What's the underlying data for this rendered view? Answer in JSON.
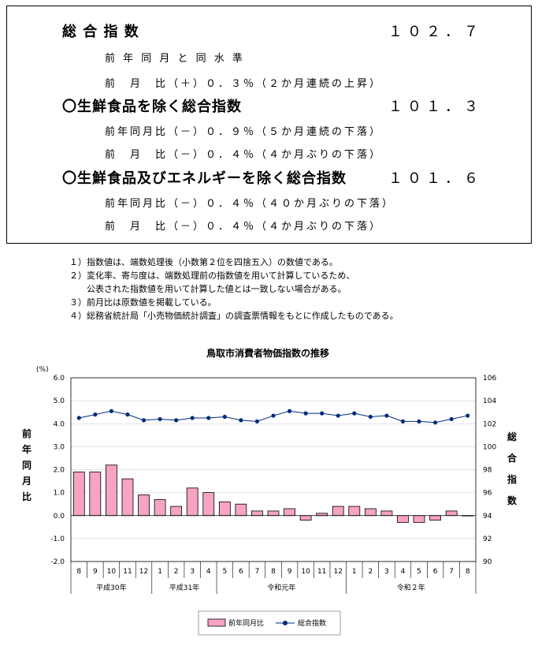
{
  "summary": {
    "overall": {
      "label": "総 合 指 数",
      "value": "１０２．７",
      "line1": "前 年 同 月 と 同 水 準",
      "line2": "前　月　比（＋）０．３％（２か月連続の上昇）"
    },
    "ex_fresh": {
      "label": "〇生鮮食品を除く総合指数",
      "value": "１０１．３",
      "line1": "前年同月比（－）０．９％（５か月連続の下落）",
      "line2": "前　月　比（－）０．４％（４か月ぶりの下落）"
    },
    "ex_fresh_energy": {
      "label": "〇生鮮食品及びエネルギーを除く総合指数",
      "value": "１０１．６",
      "line1": "前年同月比（－）０．４％（４０か月ぶりの下落）",
      "line2": "前　月　比（－）０．４％（４か月ぶりの下落）"
    }
  },
  "notes": [
    "１）指数値は、端数処理後（小数第２位を四捨五入）の数値である。",
    "２）変化率、寄与度は、端数処理前の指数値を用いて計算しているため、",
    "　　公表された指数値を用いて計算した値とは一致しない場合がある。",
    "３）前月比は原数値を掲載している。",
    "４）総務省統計局「小売物価統計調査」の調査票情報をもとに作成したものである。"
  ],
  "chart_data": {
    "type": "bar",
    "title": "鳥取市消費者物価指数の推移",
    "left_unit": "(%)",
    "ylabel_left": "前年同月比",
    "ylabel_right": "総合指数",
    "ylim_left": [
      -2.0,
      6.0
    ],
    "ylim_right": [
      90,
      106
    ],
    "yticks_left": [
      "-2.0",
      "-1.0",
      "0.0",
      "1.0",
      "2.0",
      "3.0",
      "4.0",
      "5.0",
      "6.0"
    ],
    "yticks_right": [
      "90",
      "92",
      "94",
      "96",
      "98",
      "100",
      "102",
      "104",
      "106"
    ],
    "categories": [
      "8",
      "9",
      "10",
      "11",
      "12",
      "1",
      "2",
      "3",
      "4",
      "5",
      "6",
      "7",
      "8",
      "9",
      "10",
      "11",
      "12",
      "1",
      "2",
      "3",
      "4",
      "5",
      "6",
      "7",
      "8"
    ],
    "year_groups": [
      {
        "label": "平成30年",
        "count": 5
      },
      {
        "label": "平成31年",
        "count": 4
      },
      {
        "label": "令和元年",
        "count": 8
      },
      {
        "label": "令和２年",
        "count": 8
      }
    ],
    "series": [
      {
        "name": "前年同月比",
        "type": "bar",
        "axis": "left",
        "color": "#f7a3c4",
        "values": [
          1.9,
          1.9,
          2.2,
          1.6,
          0.9,
          0.7,
          0.4,
          1.2,
          1.0,
          0.6,
          0.5,
          0.2,
          0.2,
          0.3,
          -0.2,
          0.1,
          0.4,
          0.4,
          0.3,
          0.2,
          -0.3,
          -0.3,
          -0.2,
          0.2,
          0.0
        ]
      },
      {
        "name": "総合指数",
        "type": "line",
        "axis": "right",
        "color": "#002a7a",
        "values": [
          102.5,
          102.8,
          103.1,
          102.8,
          102.3,
          102.4,
          102.3,
          102.5,
          102.5,
          102.6,
          102.3,
          102.2,
          102.7,
          103.1,
          102.9,
          102.9,
          102.7,
          102.9,
          102.6,
          102.7,
          102.2,
          102.2,
          102.1,
          102.4,
          102.7
        ]
      }
    ]
  }
}
